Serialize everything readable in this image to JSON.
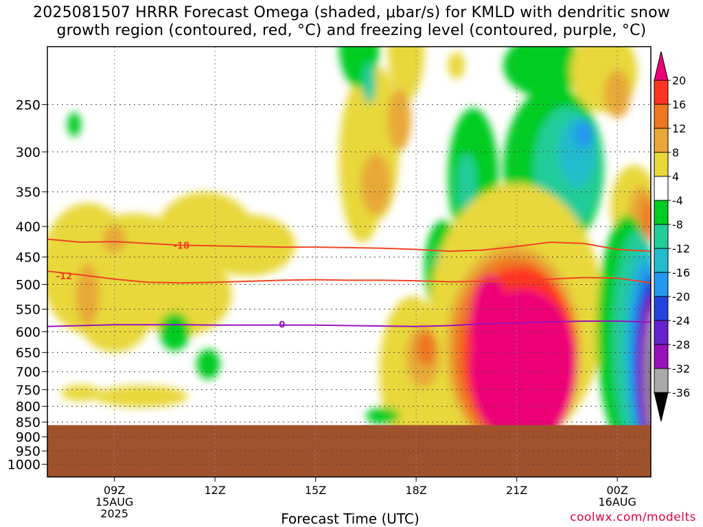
{
  "title": {
    "line1": "2025081507 HRRR Forecast Omega (shaded, μbar/s) for KMLD with dendritic snow",
    "line2": "growth region (contoured, red, °C) and freezing level (contoured, purple, °C)"
  },
  "credit": "coolwx.com/modelts",
  "chart_data": {
    "type": "heatmap",
    "title": "2025081507 HRRR Forecast Omega (shaded, μbar/s) for KMLD with dendritic snow growth region (contoured, red, °C) and freezing level (contoured, purple, °C)",
    "xlabel": "Forecast Time (UTC)",
    "ylabel": "",
    "x_range_hours": [
      7,
      25
    ],
    "y_axis": {
      "scale": "log-pressure",
      "inverted": true,
      "min": 200,
      "max": 1050,
      "ticks": [
        250,
        300,
        350,
        400,
        450,
        500,
        550,
        600,
        650,
        700,
        750,
        800,
        850,
        900,
        950,
        1000
      ]
    },
    "x_ticks": [
      {
        "hour": 9,
        "lines": [
          "09Z",
          "15AUG",
          "2025"
        ]
      },
      {
        "hour": 12,
        "lines": [
          "12Z"
        ]
      },
      {
        "hour": 15,
        "lines": [
          "15Z"
        ]
      },
      {
        "hour": 18,
        "lines": [
          "18Z"
        ]
      },
      {
        "hour": 21,
        "lines": [
          "21Z"
        ]
      },
      {
        "hour": 24,
        "lines": [
          "00Z",
          "16AUG"
        ]
      }
    ],
    "grid": true,
    "colorbar": {
      "levels": [
        20,
        16,
        12,
        8,
        4,
        -4,
        -8,
        -12,
        -16,
        -20,
        -24,
        -28,
        -32,
        -36
      ],
      "colors": [
        "#ee0077",
        "#ff3322",
        "#ee7722",
        "#e8a838",
        "#e8d83a",
        "#ffffff",
        "#00cc22",
        "#22cc99",
        "#22bbcc",
        "#2299ee",
        "#2244dd",
        "#6622cc",
        "#9911bb",
        "#aaaaaa",
        "#000000"
      ]
    },
    "ground_color": "#a0522d",
    "ground_top_hpa": 860,
    "contours": [
      {
        "name": "-18",
        "color": "#ee4422",
        "label_at": [
          11,
          430
        ],
        "points": [
          [
            7,
            420
          ],
          [
            8,
            425
          ],
          [
            9,
            424
          ],
          [
            10,
            427
          ],
          [
            11,
            430
          ],
          [
            12,
            431
          ],
          [
            13,
            432
          ],
          [
            14,
            433
          ],
          [
            15,
            433
          ],
          [
            16,
            434
          ],
          [
            17,
            435
          ],
          [
            18,
            437
          ],
          [
            19,
            440
          ],
          [
            20,
            438
          ],
          [
            21,
            432
          ],
          [
            22,
            425
          ],
          [
            23,
            427
          ],
          [
            24,
            437
          ],
          [
            25,
            440
          ]
        ]
      },
      {
        "name": "-12",
        "color": "#ee4422",
        "label_at": [
          7.5,
          484
        ],
        "points": [
          [
            7,
            475
          ],
          [
            8,
            482
          ],
          [
            9,
            490
          ],
          [
            10,
            496
          ],
          [
            11,
            497
          ],
          [
            12,
            496
          ],
          [
            13,
            494
          ],
          [
            14,
            492
          ],
          [
            15,
            491
          ],
          [
            16,
            492
          ],
          [
            17,
            492
          ],
          [
            18,
            493
          ],
          [
            19,
            495
          ],
          [
            20,
            494
          ],
          [
            21,
            495
          ],
          [
            22,
            490
          ],
          [
            23,
            487
          ],
          [
            24,
            488
          ],
          [
            25,
            497
          ]
        ]
      },
      {
        "name": "0",
        "color": "#9911bb",
        "label_at": [
          14,
          583
        ],
        "points": [
          [
            7,
            588
          ],
          [
            8,
            586
          ],
          [
            9,
            584
          ],
          [
            10,
            584
          ],
          [
            11,
            584
          ],
          [
            12,
            585
          ],
          [
            13,
            585
          ],
          [
            14,
            585
          ],
          [
            15,
            585
          ],
          [
            16,
            586
          ],
          [
            17,
            587
          ],
          [
            18,
            588
          ],
          [
            19,
            586
          ],
          [
            20,
            582
          ],
          [
            21,
            580
          ],
          [
            22,
            578
          ],
          [
            23,
            576
          ],
          [
            24,
            576
          ],
          [
            25,
            578
          ]
        ]
      }
    ]
  }
}
